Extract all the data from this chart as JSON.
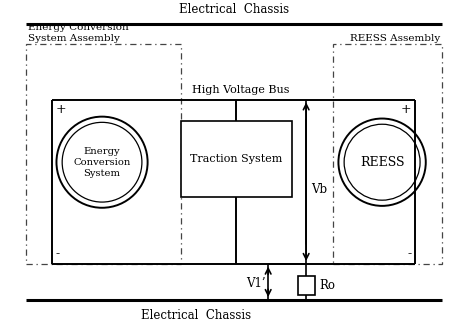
{
  "fig_width": 4.68,
  "fig_height": 3.25,
  "dpi": 100,
  "bg_color": "#ffffff",
  "line_color": "#000000",
  "title_top": "Electrical  Chassis",
  "title_bottom": "Electrical  Chassis",
  "label_ecs_assembly": "Energy Conversion\nSystem Assembly",
  "label_reess_assembly": "REESS Assembly",
  "label_hvb": "High Voltage Bus",
  "label_ecs": "Energy\nConversion\nSystem",
  "label_traction": "Traction System",
  "label_reess": "REESS",
  "label_vb": "Vb",
  "label_v1": "V1’",
  "label_ro": "Ro",
  "label_plus": "+",
  "label_minus": "-"
}
